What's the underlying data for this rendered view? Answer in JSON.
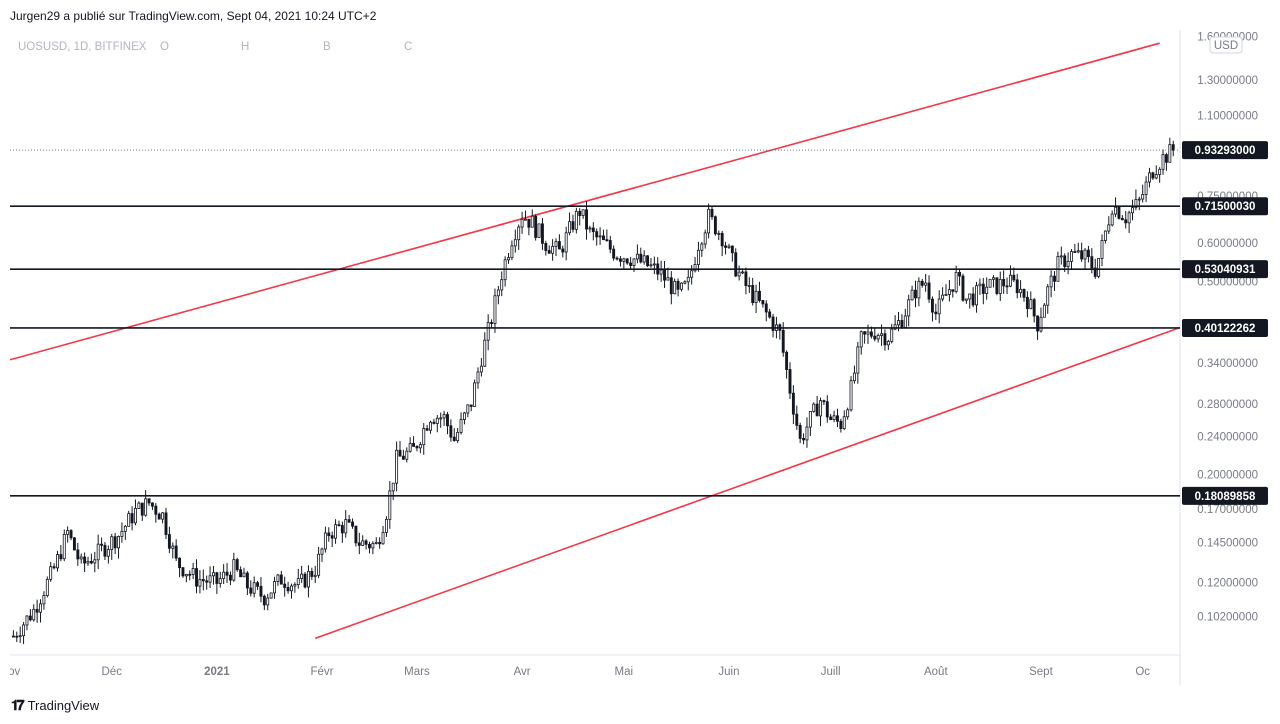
{
  "header": {
    "author": "Jurgen29",
    "published_text": "a  publié sur TradingView.com, Sept 04, 2021 10:24 UTC+2"
  },
  "footer": {
    "brand": "TradingView"
  },
  "legend": {
    "symbol": "UOSUSD, 1D, BITFINEX",
    "o": "O",
    "h": "H",
    "b": "B",
    "c": "C"
  },
  "currency_badge": "USD",
  "colors": {
    "up": "#26a69a",
    "candle": "#131722",
    "channel": "#f23645",
    "level": "#131722",
    "tag_bg": "#131722"
  },
  "chart_data": {
    "type": "candlestick",
    "y_scale": "log",
    "ylim": [
      0.085,
      1.65
    ],
    "y_ticks": [
      {
        "value": 1.6,
        "label": "1.60000000"
      },
      {
        "value": 1.3,
        "label": "1.30000000"
      },
      {
        "value": 1.1,
        "label": "1.10000000"
      },
      {
        "value": 0.75,
        "label": "0.75000000"
      },
      {
        "value": 0.6,
        "label": "0.60000000"
      },
      {
        "value": 0.5,
        "label": "0.50000000"
      },
      {
        "value": 0.34,
        "label": "0.34000000"
      },
      {
        "value": 0.28,
        "label": "0.28000000"
      },
      {
        "value": 0.24,
        "label": "0.24000000"
      },
      {
        "value": 0.2,
        "label": "0.20000000"
      },
      {
        "value": 0.17,
        "label": "0.17000000"
      },
      {
        "value": 0.145,
        "label": "0.14500000"
      },
      {
        "value": 0.12,
        "label": "0.12000000"
      },
      {
        "value": 0.102,
        "label": "0.10200000"
      }
    ],
    "x_ticks": [
      {
        "date": "2020-11-01",
        "label": "Nov"
      },
      {
        "date": "2020-12-01",
        "label": "Déc"
      },
      {
        "date": "2021-01-01",
        "label": "2021",
        "bold": true
      },
      {
        "date": "2021-02-01",
        "label": "Févr"
      },
      {
        "date": "2021-03-01",
        "label": "Mars"
      },
      {
        "date": "2021-04-01",
        "label": "Avr"
      },
      {
        "date": "2021-05-01",
        "label": "Mai"
      },
      {
        "date": "2021-06-01",
        "label": "Juin"
      },
      {
        "date": "2021-07-01",
        "label": "Juill"
      },
      {
        "date": "2021-08-01",
        "label": "Août"
      },
      {
        "date": "2021-09-01",
        "label": "Sept"
      },
      {
        "date": "2021-10-01",
        "label": "Oc"
      }
    ],
    "x_range": [
      "2020-11-01",
      "2021-10-12"
    ],
    "current_price": {
      "value": 0.93293,
      "label": "0.93293000"
    },
    "horizontal_levels": [
      {
        "value": 0.7150003,
        "label": "0.71500030"
      },
      {
        "value": 0.53040931,
        "label": "0.53040931"
      },
      {
        "value": 0.40122262,
        "label": "0.40122262"
      },
      {
        "value": 0.18089858,
        "label": "0.18089858"
      }
    ],
    "channel_lines": [
      {
        "name": "upper",
        "points": [
          [
            "2020-11-01",
            0.345
          ],
          [
            "2021-10-06",
            1.55
          ]
        ]
      },
      {
        "name": "lower",
        "points": [
          [
            "2021-01-30",
            0.092
          ],
          [
            "2021-10-12",
            0.402
          ]
        ]
      }
    ],
    "price_path": [
      [
        "2020-11-02",
        0.093
      ],
      [
        "2020-11-08",
        0.105
      ],
      [
        "2020-11-14",
        0.128
      ],
      [
        "2020-11-18",
        0.152
      ],
      [
        "2020-11-22",
        0.13
      ],
      [
        "2020-11-27",
        0.138
      ],
      [
        "2020-12-03",
        0.15
      ],
      [
        "2020-12-08",
        0.168
      ],
      [
        "2020-12-12",
        0.175
      ],
      [
        "2020-12-16",
        0.165
      ],
      [
        "2020-12-20",
        0.132
      ],
      [
        "2020-12-26",
        0.122
      ],
      [
        "2021-01-01",
        0.12
      ],
      [
        "2021-01-06",
        0.128
      ],
      [
        "2021-01-10",
        0.118
      ],
      [
        "2021-01-15",
        0.112
      ],
      [
        "2021-01-20",
        0.122
      ],
      [
        "2021-01-25",
        0.118
      ],
      [
        "2021-01-30",
        0.128
      ],
      [
        "2021-02-03",
        0.152
      ],
      [
        "2021-02-08",
        0.158
      ],
      [
        "2021-02-12",
        0.145
      ],
      [
        "2021-02-17",
        0.143
      ],
      [
        "2021-02-20",
        0.168
      ],
      [
        "2021-02-23",
        0.215
      ],
      [
        "2021-02-28",
        0.225
      ],
      [
        "2021-03-05",
        0.265
      ],
      [
        "2021-03-09",
        0.262
      ],
      [
        "2021-03-12",
        0.236
      ],
      [
        "2021-03-17",
        0.282
      ],
      [
        "2021-03-20",
        0.35
      ],
      [
        "2021-03-23",
        0.42
      ],
      [
        "2021-03-26",
        0.52
      ],
      [
        "2021-03-29",
        0.615
      ],
      [
        "2021-04-01",
        0.688
      ],
      [
        "2021-04-04",
        0.66
      ],
      [
        "2021-04-08",
        0.6
      ],
      [
        "2021-04-12",
        0.575
      ],
      [
        "2021-04-16",
        0.66
      ],
      [
        "2021-04-18",
        0.7
      ],
      [
        "2021-04-21",
        0.63
      ],
      [
        "2021-04-25",
        0.6
      ],
      [
        "2021-04-29",
        0.57
      ],
      [
        "2021-05-03",
        0.56
      ],
      [
        "2021-05-07",
        0.545
      ],
      [
        "2021-05-11",
        0.525
      ],
      [
        "2021-05-14",
        0.5
      ],
      [
        "2021-05-17",
        0.47
      ],
      [
        "2021-05-20",
        0.495
      ],
      [
        "2021-05-23",
        0.6
      ],
      [
        "2021-05-26",
        0.68
      ],
      [
        "2021-05-30",
        0.62
      ],
      [
        "2021-06-02",
        0.55
      ],
      [
        "2021-06-06",
        0.49
      ],
      [
        "2021-06-10",
        0.45
      ],
      [
        "2021-06-13",
        0.42
      ],
      [
        "2021-06-16",
        0.39
      ],
      [
        "2021-06-19",
        0.3
      ],
      [
        "2021-06-22",
        0.235
      ],
      [
        "2021-06-25",
        0.26
      ],
      [
        "2021-06-28",
        0.285
      ],
      [
        "2021-07-01",
        0.26
      ],
      [
        "2021-07-04",
        0.255
      ],
      [
        "2021-07-07",
        0.3
      ],
      [
        "2021-07-10",
        0.38
      ],
      [
        "2021-07-14",
        0.395
      ],
      [
        "2021-07-18",
        0.385
      ],
      [
        "2021-07-22",
        0.42
      ],
      [
        "2021-07-26",
        0.48
      ],
      [
        "2021-07-29",
        0.5
      ],
      [
        "2021-08-01",
        0.43
      ],
      [
        "2021-08-04",
        0.47
      ],
      [
        "2021-08-07",
        0.51
      ],
      [
        "2021-08-10",
        0.46
      ],
      [
        "2021-08-13",
        0.47
      ],
      [
        "2021-08-16",
        0.49
      ],
      [
        "2021-08-19",
        0.49
      ],
      [
        "2021-08-22",
        0.5
      ],
      [
        "2021-08-25",
        0.49
      ],
      [
        "2021-08-28",
        0.46
      ],
      [
        "2021-08-31",
        0.41
      ],
      [
        "2021-09-03",
        0.48
      ],
      [
        "2021-09-06",
        0.54
      ],
      [
        "2021-09-10",
        0.57
      ],
      [
        "2021-09-14",
        0.56
      ],
      [
        "2021-09-17",
        0.53
      ],
      [
        "2021-09-19",
        0.59
      ],
      [
        "2021-09-22",
        0.72
      ],
      [
        "2021-09-26",
        0.68
      ],
      [
        "2021-09-30",
        0.73
      ],
      [
        "2021-10-04",
        0.85
      ],
      [
        "2021-10-07",
        0.9
      ],
      [
        "2021-10-10",
        0.93293
      ]
    ]
  }
}
